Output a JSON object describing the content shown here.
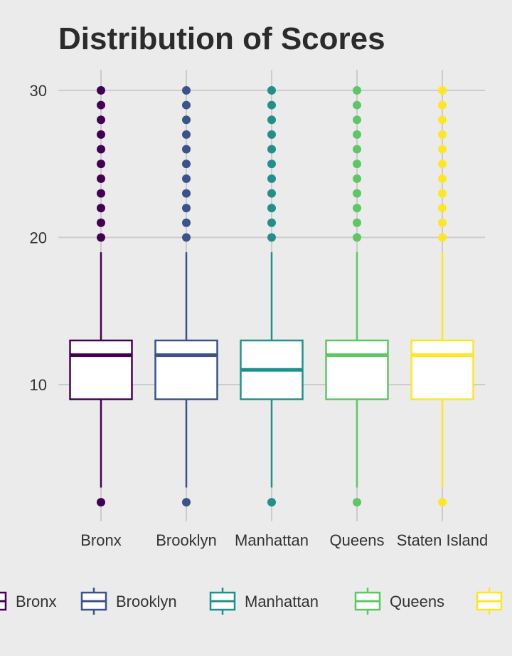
{
  "chart_data": {
    "type": "box",
    "title": "Distribution of Scores",
    "xlabel": "",
    "ylabel": "",
    "ylim": [
      0.7,
      31.4
    ],
    "yticks": [
      10,
      20,
      30
    ],
    "grid": true,
    "legend_position": "bottom",
    "categories": [
      "Bronx",
      "Brooklyn",
      "Manhattan",
      "Queens",
      "Staten Island"
    ],
    "series": [
      {
        "name": "Bronx",
        "color": "#440154",
        "q1": 9,
        "median": 12,
        "q3": 13,
        "whisker_low": 3,
        "whisker_high": 19,
        "outliers": [
          2,
          20,
          21,
          22,
          23,
          24,
          25,
          26,
          27,
          28,
          29,
          30
        ]
      },
      {
        "name": "Brooklyn",
        "color": "#3b528b",
        "q1": 9,
        "median": 12,
        "q3": 13,
        "whisker_low": 3,
        "whisker_high": 19,
        "outliers": [
          2,
          20,
          21,
          22,
          23,
          24,
          25,
          26,
          27,
          28,
          29,
          30
        ]
      },
      {
        "name": "Manhattan",
        "color": "#21908c",
        "q1": 9,
        "median": 11,
        "q3": 13,
        "whisker_low": 3,
        "whisker_high": 19,
        "outliers": [
          2,
          20,
          21,
          22,
          23,
          24,
          25,
          26,
          27,
          28,
          29,
          30
        ]
      },
      {
        "name": "Queens",
        "color": "#5dc863",
        "q1": 9,
        "median": 12,
        "q3": 13,
        "whisker_low": 3,
        "whisker_high": 19,
        "outliers": [
          2,
          20,
          21,
          22,
          23,
          24,
          25,
          26,
          27,
          28,
          29,
          30
        ]
      },
      {
        "name": "Staten Island",
        "color": "#fde725",
        "q1": 9,
        "median": 12,
        "q3": 13,
        "whisker_low": 3,
        "whisker_high": 19,
        "outliers": [
          2,
          20,
          21,
          22,
          23,
          24,
          25,
          26,
          27,
          28,
          29,
          30
        ]
      }
    ]
  }
}
